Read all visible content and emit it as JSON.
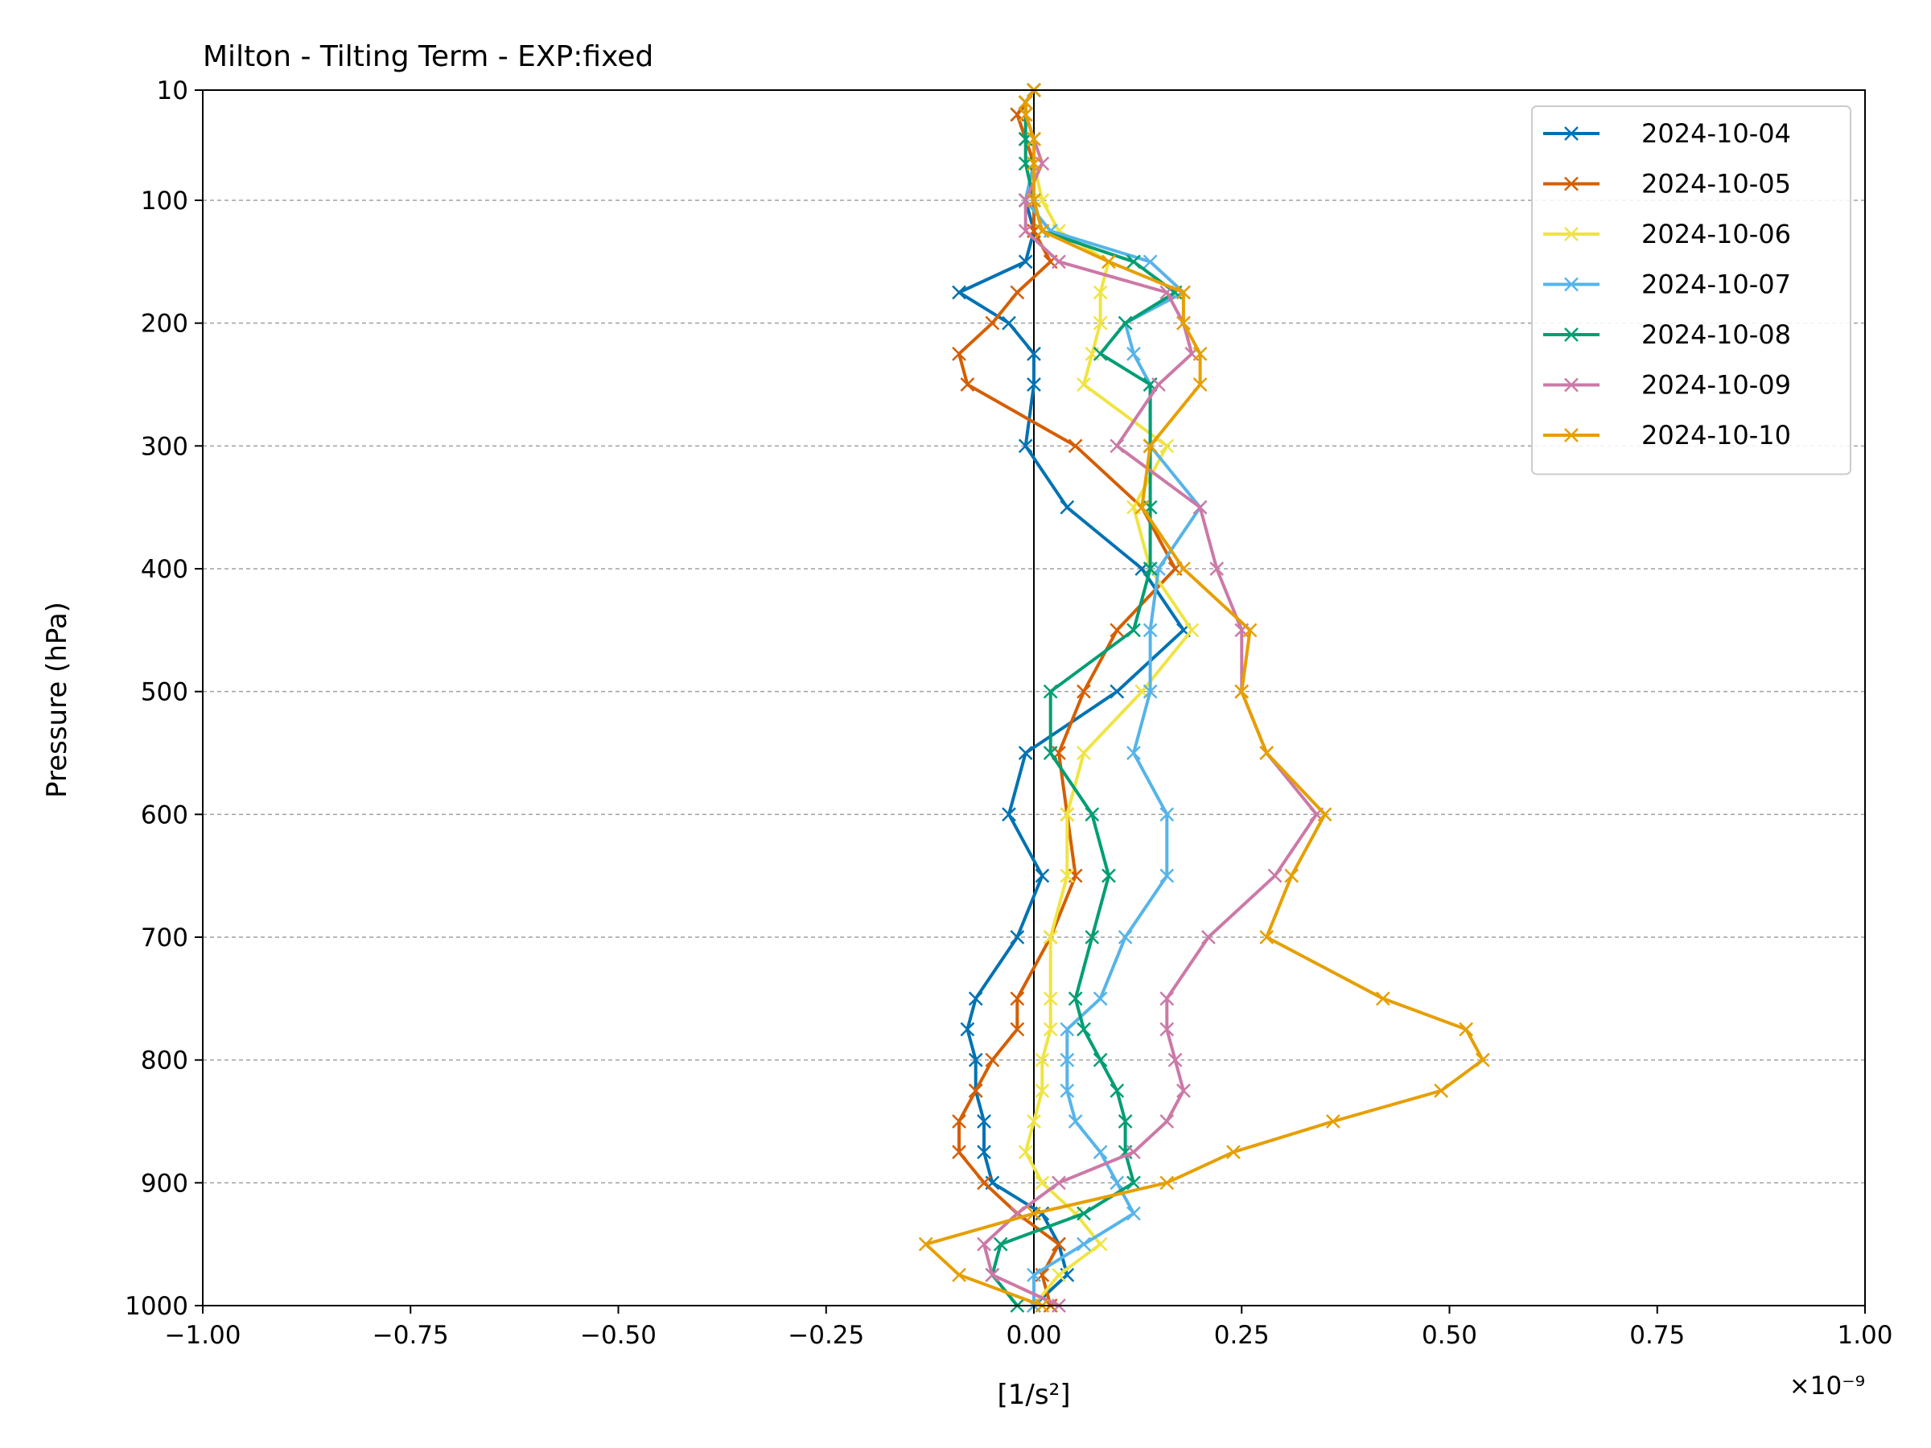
{
  "chart_data": {
    "type": "line",
    "title": "Milton - Tilting Term - EXP:fixed",
    "xlabel": "[1/s²]",
    "ylabel": "Pressure (hPa)",
    "x_offset_label": "×10⁻⁹",
    "x_scale_exponent": -9,
    "xlim": [
      -1.0,
      1.0
    ],
    "ylim": [
      1000,
      10
    ],
    "y_scale": "custom: 10 to 100 compressed in top band, linear 100-1000 below",
    "xticks": [
      "−1.00",
      "−0.75",
      "−0.50",
      "−0.25",
      "0.00",
      "0.25",
      "0.50",
      "0.75",
      "1.00"
    ],
    "xtick_values": [
      -1.0,
      -0.75,
      -0.5,
      -0.25,
      0.0,
      0.25,
      0.5,
      0.75,
      1.0
    ],
    "yticks": [
      "10",
      "100",
      "200",
      "300",
      "400",
      "500",
      "600",
      "700",
      "800",
      "900",
      "1000"
    ],
    "ytick_values": [
      10,
      100,
      200,
      300,
      400,
      500,
      600,
      700,
      800,
      900,
      1000
    ],
    "grid": "horizontal dashed gray at y ticks",
    "zero_line": true,
    "legend_position": "upper right",
    "marker": "x",
    "levels": [
      10,
      20,
      30,
      50,
      70,
      100,
      125,
      150,
      175,
      200,
      225,
      250,
      300,
      350,
      400,
      450,
      500,
      550,
      600,
      650,
      700,
      750,
      775,
      800,
      825,
      850,
      875,
      900,
      925,
      950,
      975,
      1000
    ],
    "series": [
      {
        "name": "2024-10-04",
        "color": "#0072B2",
        "values": [
          0.0,
          -0.01,
          -0.02,
          -0.01,
          0.0,
          -0.01,
          0.0,
          -0.01,
          -0.09,
          -0.03,
          0.0,
          0.0,
          -0.01,
          0.04,
          0.13,
          0.18,
          0.1,
          -0.01,
          -0.03,
          0.01,
          -0.02,
          -0.07,
          -0.08,
          -0.07,
          -0.07,
          -0.06,
          -0.06,
          -0.05,
          0.01,
          0.03,
          0.04,
          0.0
        ]
      },
      {
        "name": "2024-10-05",
        "color": "#D55E00",
        "values": [
          0.0,
          -0.01,
          -0.02,
          -0.01,
          0.0,
          0.0,
          0.0,
          0.02,
          -0.02,
          -0.05,
          -0.09,
          -0.08,
          0.05,
          0.13,
          0.17,
          0.1,
          0.06,
          0.03,
          0.04,
          0.05,
          0.02,
          -0.02,
          -0.02,
          -0.05,
          -0.07,
          -0.09,
          -0.09,
          -0.06,
          -0.02,
          0.03,
          0.01,
          0.02
        ]
      },
      {
        "name": "2024-10-06",
        "color": "#F0E442",
        "values": [
          0.0,
          -0.01,
          -0.01,
          0.0,
          0.0,
          0.01,
          0.03,
          0.09,
          0.08,
          0.08,
          0.07,
          0.06,
          0.16,
          0.12,
          0.14,
          0.19,
          0.13,
          0.06,
          0.04,
          0.04,
          0.02,
          0.02,
          0.02,
          0.01,
          0.01,
          0.0,
          -0.01,
          0.01,
          0.05,
          0.08,
          0.03,
          0.0
        ]
      },
      {
        "name": "2024-10-07",
        "color": "#56B4E9",
        "values": [
          0.0,
          -0.01,
          -0.01,
          0.0,
          0.0,
          -0.01,
          0.02,
          0.14,
          0.18,
          0.11,
          0.12,
          0.14,
          0.14,
          0.2,
          0.15,
          0.14,
          0.14,
          0.12,
          0.16,
          0.16,
          0.11,
          0.08,
          0.04,
          0.04,
          0.04,
          0.05,
          0.08,
          0.1,
          0.12,
          0.06,
          0.0,
          0.0
        ]
      },
      {
        "name": "2024-10-08",
        "color": "#009E73",
        "values": [
          0.0,
          -0.01,
          -0.01,
          -0.01,
          -0.01,
          0.0,
          0.01,
          0.12,
          0.17,
          0.11,
          0.08,
          0.14,
          0.14,
          0.14,
          0.14,
          0.12,
          0.02,
          0.02,
          0.07,
          0.09,
          0.07,
          0.05,
          0.06,
          0.08,
          0.1,
          0.11,
          0.11,
          0.12,
          0.06,
          -0.04,
          -0.05,
          -0.02
        ]
      },
      {
        "name": "2024-10-09",
        "color": "#CC79A7",
        "values": [
          0.0,
          -0.01,
          -0.01,
          0.0,
          0.01,
          -0.01,
          -0.01,
          0.03,
          0.16,
          0.18,
          0.19,
          0.15,
          0.1,
          0.2,
          0.22,
          0.25,
          0.25,
          0.28,
          0.34,
          0.29,
          0.21,
          0.16,
          0.16,
          0.17,
          0.18,
          0.16,
          0.12,
          0.03,
          -0.02,
          -0.06,
          -0.05,
          0.03
        ]
      },
      {
        "name": "2024-10-10",
        "color": "#E69F00",
        "values": [
          0.0,
          -0.01,
          -0.01,
          0.0,
          0.0,
          0.0,
          0.01,
          0.09,
          0.18,
          0.18,
          0.2,
          0.2,
          0.14,
          0.13,
          0.18,
          0.26,
          0.25,
          0.28,
          0.35,
          0.31,
          0.28,
          0.42,
          0.52,
          0.54,
          0.49,
          0.36,
          0.24,
          0.16,
          0.0,
          -0.13,
          -0.09,
          0.01
        ]
      }
    ]
  }
}
